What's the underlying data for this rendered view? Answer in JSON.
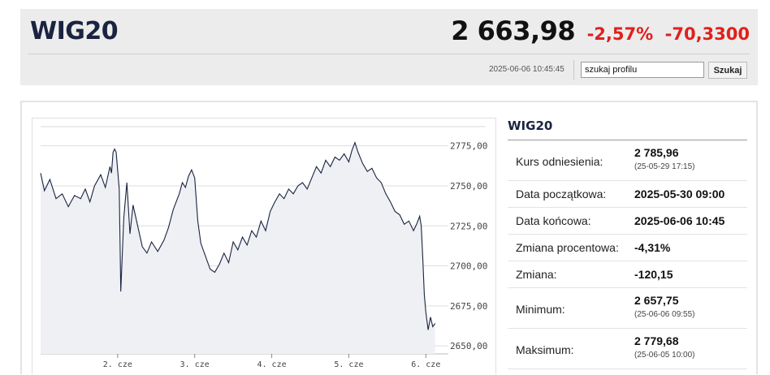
{
  "header": {
    "ticker": "WIG20",
    "price": "2 663,98",
    "change_pct": "-2,57%",
    "change_abs": "-70,3300",
    "timestamp": "2025-06-06 10:45:45",
    "search_value": "szukaj profilu",
    "search_button": "Szukaj"
  },
  "info": {
    "title": "WIG20",
    "rows": [
      {
        "label": "Kurs odniesienia:",
        "value": "2 785,96",
        "sub": "(25-05-29 17:15)"
      },
      {
        "label": "Data początkowa:",
        "value": "2025-05-30 09:00"
      },
      {
        "label": "Data końcowa:",
        "value": "2025-06-06 10:45"
      },
      {
        "label": "Zmiana procentowa:",
        "value": "-4,31%"
      },
      {
        "label": "Zmiana:",
        "value": "-120,15"
      },
      {
        "label": "Minimum:",
        "value": "2 657,75",
        "sub": "(25-06-06 09:55)"
      },
      {
        "label": "Maksimum:",
        "value": "2 779,68",
        "sub": "(25-06-05 10:00)"
      }
    ]
  },
  "chart_data": {
    "type": "line",
    "title": "",
    "xlabel": "",
    "ylabel": "",
    "ylim": [
      2645,
      2787
    ],
    "yticks": [
      2650,
      2675,
      2700,
      2725,
      2750,
      2775
    ],
    "ytick_labels": [
      "2650,00",
      "2675,00",
      "2700,00",
      "2725,00",
      "2750,00",
      "2775,00"
    ],
    "xticks": [
      {
        "x": 1,
        "label": "2. cze"
      },
      {
        "x": 2,
        "label": "3. cze"
      },
      {
        "x": 3,
        "label": "4. cze"
      },
      {
        "x": 4,
        "label": "5. cze"
      },
      {
        "x": 5,
        "label": "6. cze"
      }
    ],
    "xlim": [
      0,
      5.25
    ],
    "grid": true,
    "series": [
      {
        "x": [
          0,
          0.05,
          0.12,
          0.2,
          0.28,
          0.36,
          0.44,
          0.52,
          0.58,
          0.64,
          0.7,
          0.78,
          0.84,
          0.9,
          0.92,
          0.94,
          0.96,
          0.98,
          1.02,
          1.04,
          1.08,
          1.12,
          1.16,
          1.2,
          1.26,
          1.32,
          1.38,
          1.44,
          1.52,
          1.6,
          1.66,
          1.72,
          1.76,
          1.8,
          1.84,
          1.88,
          1.92,
          1.96,
          2.0,
          2.04,
          2.08,
          2.14,
          2.2,
          2.26,
          2.32,
          2.38,
          2.44,
          2.5,
          2.56,
          2.62,
          2.68,
          2.74,
          2.8,
          2.86,
          2.92,
          2.98,
          3.04,
          3.1,
          3.16,
          3.22,
          3.28,
          3.34,
          3.4,
          3.46,
          3.52,
          3.58,
          3.64,
          3.7,
          3.76,
          3.82,
          3.88,
          3.94,
          4.0,
          4.04,
          4.08,
          4.12,
          4.18,
          4.24,
          4.3,
          4.36,
          4.42,
          4.48,
          4.54,
          4.6,
          4.66,
          4.72,
          4.78,
          4.84,
          4.88,
          4.92,
          4.94,
          4.96,
          4.98,
          5.0,
          5.03,
          5.06,
          5.09,
          5.12
        ],
        "values": [
          2758,
          2747,
          2754,
          2742,
          2745,
          2737,
          2744,
          2742,
          2748,
          2740,
          2750,
          2757,
          2749,
          2762,
          2758,
          2771,
          2773,
          2771,
          2748,
          2684,
          2730,
          2752,
          2720,
          2738,
          2725,
          2712,
          2708,
          2715,
          2709,
          2716,
          2724,
          2735,
          2740,
          2745,
          2752,
          2749,
          2756,
          2760,
          2755,
          2728,
          2714,
          2706,
          2698,
          2696,
          2701,
          2708,
          2702,
          2715,
          2710,
          2718,
          2713,
          2722,
          2718,
          2728,
          2722,
          2734,
          2740,
          2745,
          2742,
          2748,
          2745,
          2750,
          2752,
          2748,
          2755,
          2762,
          2758,
          2766,
          2762,
          2768,
          2766,
          2770,
          2765,
          2772,
          2777,
          2771,
          2764,
          2759,
          2761,
          2755,
          2752,
          2745,
          2740,
          2734,
          2732,
          2726,
          2728,
          2722,
          2726,
          2731,
          2725,
          2705,
          2682,
          2671,
          2660,
          2668,
          2662,
          2664
        ]
      }
    ]
  }
}
